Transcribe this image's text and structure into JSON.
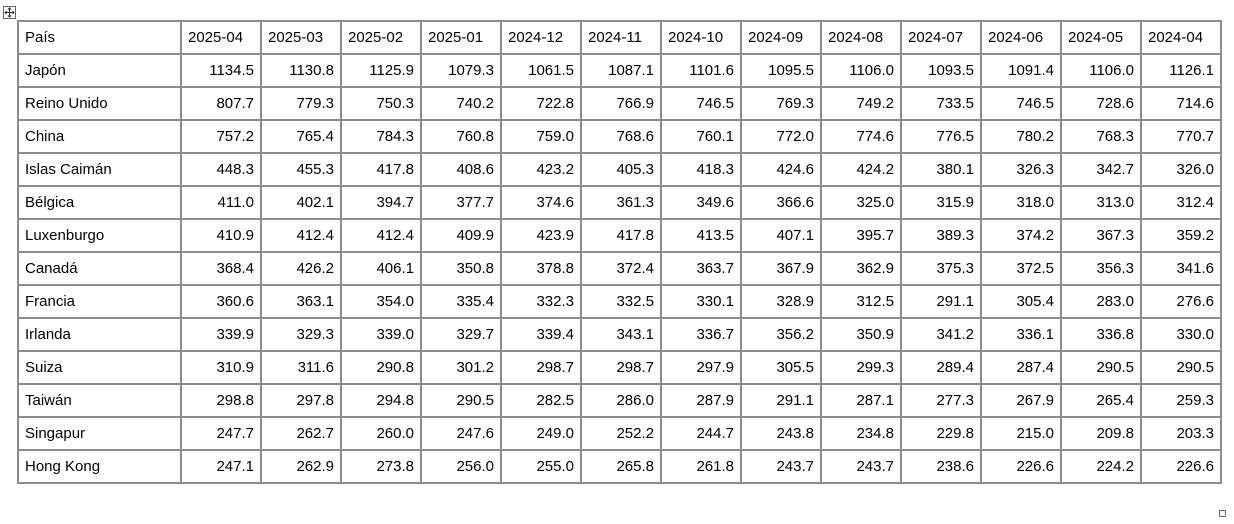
{
  "table": {
    "header": [
      "País",
      "2025-04",
      "2025-03",
      "2025-02",
      "2025-01",
      "2024-12",
      "2024-11",
      "2024-10",
      "2024-09",
      "2024-08",
      "2024-07",
      "2024-06",
      "2024-05",
      "2024-04"
    ],
    "rows": [
      [
        "Japón",
        "1134.5",
        "1130.8",
        "1125.9",
        "1079.3",
        "1061.5",
        "1087.1",
        "1101.6",
        "1095.5",
        "1106.0",
        "1093.5",
        "1091.4",
        "1106.0",
        "1126.1"
      ],
      [
        "Reino Unido",
        "807.7",
        "779.3",
        "750.3",
        "740.2",
        "722.8",
        "766.9",
        "746.5",
        "769.3",
        "749.2",
        "733.5",
        "746.5",
        "728.6",
        "714.6"
      ],
      [
        "China",
        "757.2",
        "765.4",
        "784.3",
        "760.8",
        "759.0",
        "768.6",
        "760.1",
        "772.0",
        "774.6",
        "776.5",
        "780.2",
        "768.3",
        "770.7"
      ],
      [
        "Islas Caimán",
        "448.3",
        "455.3",
        "417.8",
        "408.6",
        "423.2",
        "405.3",
        "418.3",
        "424.6",
        "424.2",
        "380.1",
        "326.3",
        "342.7",
        "326.0"
      ],
      [
        "Bélgica",
        "411.0",
        "402.1",
        "394.7",
        "377.7",
        "374.6",
        "361.3",
        "349.6",
        "366.6",
        "325.0",
        "315.9",
        "318.0",
        "313.0",
        "312.4"
      ],
      [
        "Luxenburgo",
        "410.9",
        "412.4",
        "412.4",
        "409.9",
        "423.9",
        "417.8",
        "413.5",
        "407.1",
        "395.7",
        "389.3",
        "374.2",
        "367.3",
        "359.2"
      ],
      [
        "Canadá",
        "368.4",
        "426.2",
        "406.1",
        "350.8",
        "378.8",
        "372.4",
        "363.7",
        "367.9",
        "362.9",
        "375.3",
        "372.5",
        "356.3",
        "341.6"
      ],
      [
        "Francia",
        "360.6",
        "363.1",
        "354.0",
        "335.4",
        "332.3",
        "332.5",
        "330.1",
        "328.9",
        "312.5",
        "291.1",
        "305.4",
        "283.0",
        "276.6"
      ],
      [
        "Irlanda",
        "339.9",
        "329.3",
        "339.0",
        "329.7",
        "339.4",
        "343.1",
        "336.7",
        "356.2",
        "350.9",
        "341.2",
        "336.1",
        "336.8",
        "330.0"
      ],
      [
        "Suiza",
        "310.9",
        "311.6",
        "290.8",
        "301.2",
        "298.7",
        "298.7",
        "297.9",
        "305.5",
        "299.3",
        "289.4",
        "287.4",
        "290.5",
        "290.5"
      ],
      [
        "Taiwán",
        "298.8",
        "297.8",
        "294.8",
        "290.5",
        "282.5",
        "286.0",
        "287.9",
        "291.1",
        "287.1",
        "277.3",
        "267.9",
        "265.4",
        "259.3"
      ],
      [
        "Singapur",
        "247.7",
        "262.7",
        "260.0",
        "247.6",
        "249.0",
        "252.2",
        "244.7",
        "243.8",
        "234.8",
        "229.8",
        "215.0",
        "209.8",
        "203.3"
      ],
      [
        "Hong Kong",
        "247.1",
        "262.9",
        "273.8",
        "256.0",
        "255.0",
        "265.8",
        "261.8",
        "243.7",
        "243.7",
        "238.6",
        "226.6",
        "224.2",
        "226.6"
      ]
    ]
  }
}
